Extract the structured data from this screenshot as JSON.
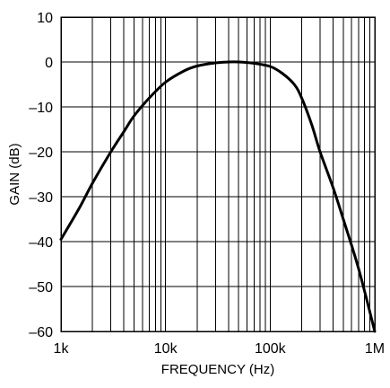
{
  "chart_data": {
    "type": "line",
    "xscale": "log",
    "xlim": [
      1000,
      1000000
    ],
    "ylim": [
      -60,
      10
    ],
    "grid": true,
    "xlabel": "FREQUENCY (Hz)",
    "ylabel": "GAIN (dB)",
    "x_ticks": [
      {
        "value": 1000,
        "label": "1k"
      },
      {
        "value": 10000,
        "label": "10k"
      },
      {
        "value": 100000,
        "label": "100k"
      },
      {
        "value": 1000000,
        "label": "1M"
      }
    ],
    "y_ticks": [
      {
        "value": 10,
        "label": "10"
      },
      {
        "value": 0,
        "label": "0"
      },
      {
        "value": -10,
        "label": "–10"
      },
      {
        "value": -20,
        "label": "–20"
      },
      {
        "value": -30,
        "label": "–30"
      },
      {
        "value": -40,
        "label": "–40"
      },
      {
        "value": -50,
        "label": "–50"
      },
      {
        "value": -60,
        "label": "–60"
      }
    ],
    "series": [
      {
        "color": "#000000",
        "points": [
          [
            1000,
            -39.5
          ],
          [
            1500,
            -32.5
          ],
          [
            2000,
            -27
          ],
          [
            3000,
            -20
          ],
          [
            4000,
            -15.5
          ],
          [
            5000,
            -12
          ],
          [
            7000,
            -8
          ],
          [
            10000,
            -4.5
          ],
          [
            15000,
            -2
          ],
          [
            20000,
            -0.9
          ],
          [
            30000,
            -0.2
          ],
          [
            40000,
            0
          ],
          [
            50000,
            0
          ],
          [
            70000,
            -0.3
          ],
          [
            100000,
            -1
          ],
          [
            130000,
            -2.5
          ],
          [
            170000,
            -5
          ],
          [
            200000,
            -8
          ],
          [
            250000,
            -14
          ],
          [
            300000,
            -20
          ],
          [
            400000,
            -28
          ],
          [
            500000,
            -35
          ],
          [
            700000,
            -46
          ],
          [
            1000000,
            -60
          ]
        ]
      }
    ]
  }
}
